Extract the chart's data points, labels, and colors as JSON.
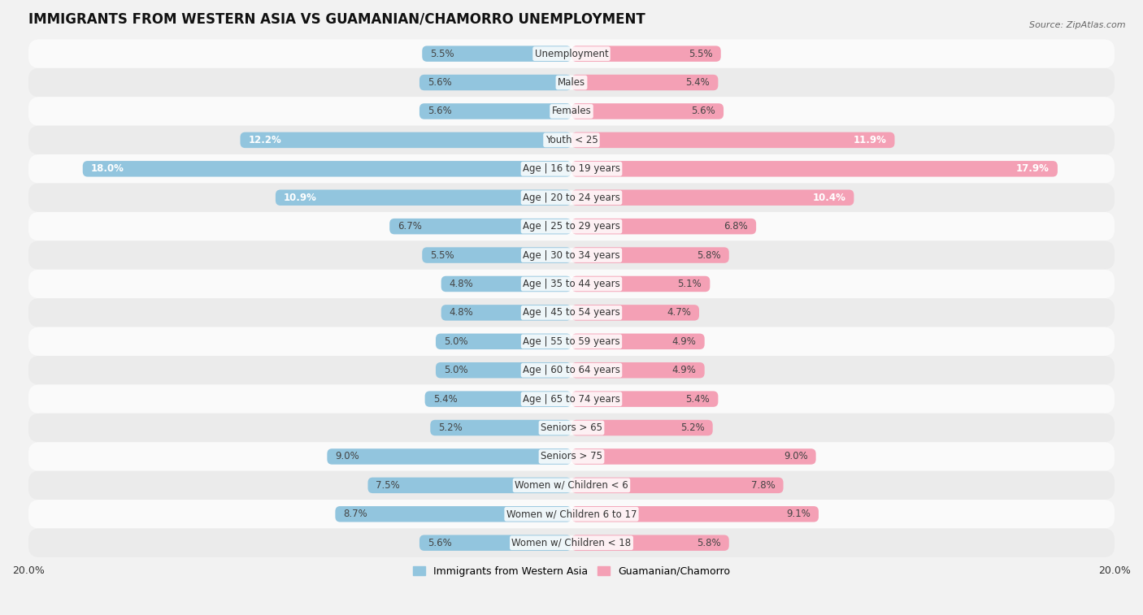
{
  "title": "IMMIGRANTS FROM WESTERN ASIA VS GUAMANIAN/CHAMORRO UNEMPLOYMENT",
  "source": "Source: ZipAtlas.com",
  "categories": [
    "Unemployment",
    "Males",
    "Females",
    "Youth < 25",
    "Age | 16 to 19 years",
    "Age | 20 to 24 years",
    "Age | 25 to 29 years",
    "Age | 30 to 34 years",
    "Age | 35 to 44 years",
    "Age | 45 to 54 years",
    "Age | 55 to 59 years",
    "Age | 60 to 64 years",
    "Age | 65 to 74 years",
    "Seniors > 65",
    "Seniors > 75",
    "Women w/ Children < 6",
    "Women w/ Children 6 to 17",
    "Women w/ Children < 18"
  ],
  "left_values": [
    5.5,
    5.6,
    5.6,
    12.2,
    18.0,
    10.9,
    6.7,
    5.5,
    4.8,
    4.8,
    5.0,
    5.0,
    5.4,
    5.2,
    9.0,
    7.5,
    8.7,
    5.6
  ],
  "right_values": [
    5.5,
    5.4,
    5.6,
    11.9,
    17.9,
    10.4,
    6.8,
    5.8,
    5.1,
    4.7,
    4.9,
    4.9,
    5.4,
    5.2,
    9.0,
    7.8,
    9.1,
    5.8
  ],
  "left_color": "#92c5de",
  "right_color": "#f4a0b5",
  "background_color": "#f2f2f2",
  "row_color_light": "#fafafa",
  "row_color_dark": "#ebebeb",
  "max_value": 20.0,
  "bar_height": 0.55,
  "title_fontsize": 12,
  "label_fontsize": 8.5,
  "value_fontsize": 8.5,
  "legend_label_left": "Immigrants from Western Asia",
  "legend_label_right": "Guamanian/Chamorro"
}
